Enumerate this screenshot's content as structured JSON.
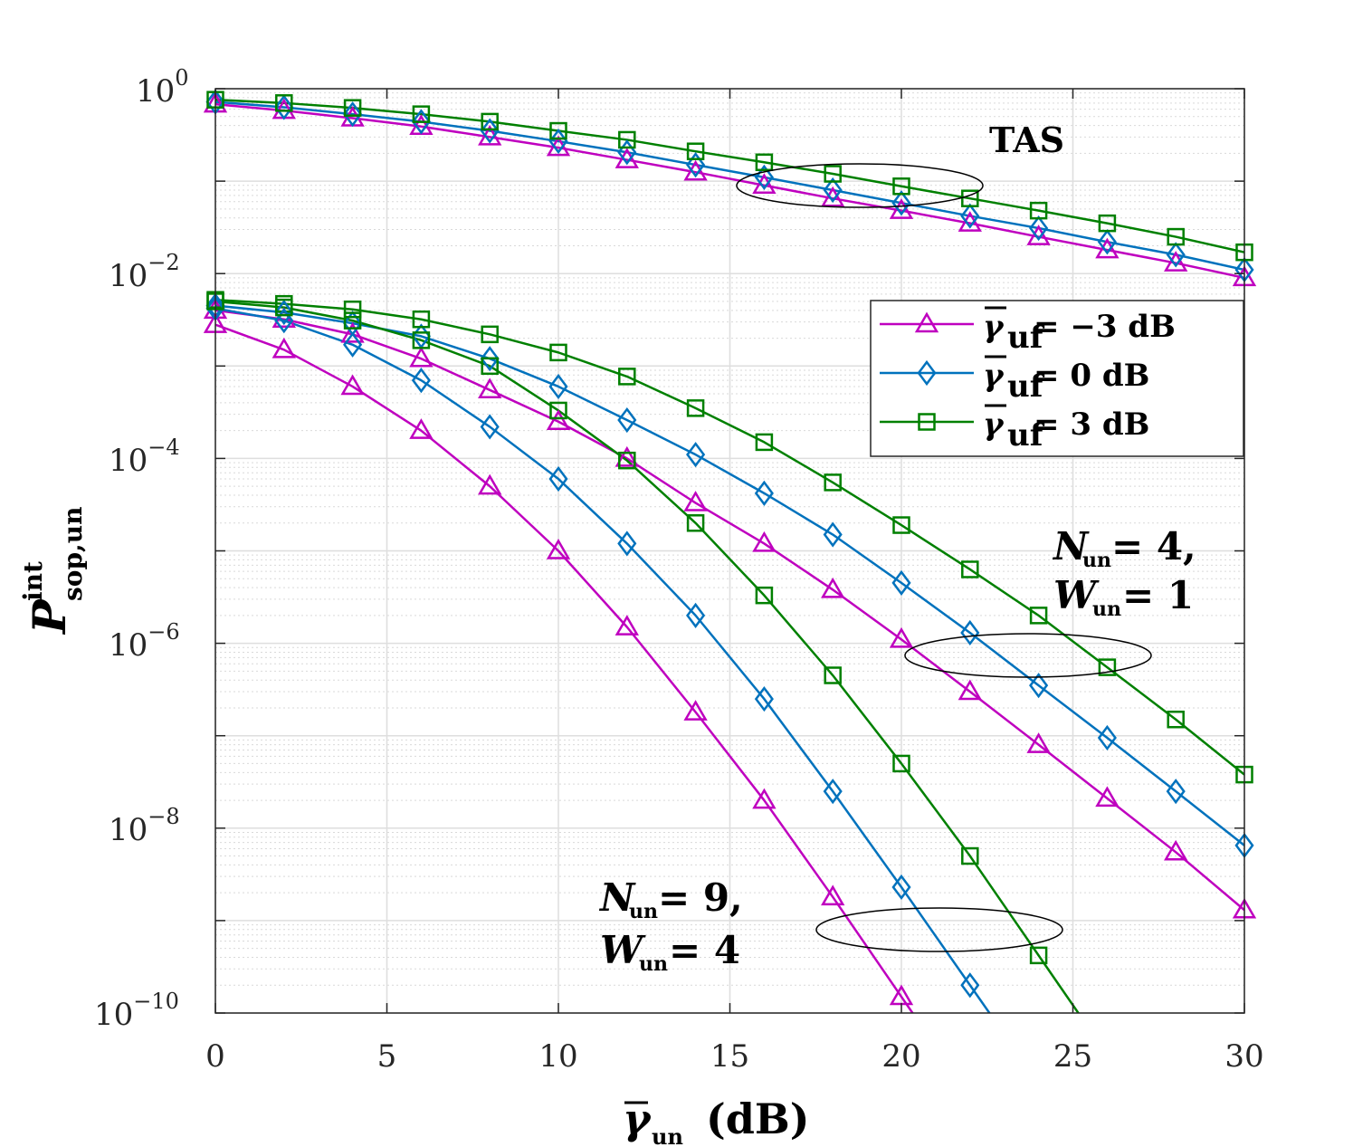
{
  "chart_data": {
    "type": "line",
    "xlabel": "γ̄_un (dB)",
    "xlabel_main": "γ",
    "xlabel_sub": "un",
    "xlabel_unit": "(dB)",
    "ylabel": "P^int_sop,un",
    "ylabel_main": "P",
    "ylabel_sup": "int",
    "ylabel_sub": "sop,un",
    "xlim": [
      0,
      30
    ],
    "ylim_log10": [
      -10,
      0
    ],
    "y_scale": "log",
    "x_ticks": [
      0,
      5,
      10,
      15,
      20,
      25,
      30
    ],
    "x_tick_labels": [
      "0",
      "5",
      "10",
      "15",
      "20",
      "25",
      "30"
    ],
    "y_ticks_exp": [
      0,
      -2,
      -4,
      -6,
      -8,
      -10
    ],
    "y_tick_labels": [
      "10^0",
      "10^-2",
      "10^-4",
      "10^-6",
      "10^-8",
      "10^-10"
    ],
    "y_tick_base": "10",
    "y_tick_exps": [
      "0",
      "−2",
      "−4",
      "−6",
      "−8",
      "−10"
    ],
    "grid": true,
    "legend_position": "upper-right",
    "colors": {
      "magenta": "#BF00BF",
      "blue": "#0072BD",
      "green": "#008000"
    },
    "legend": [
      {
        "name": "γ̄_uf = −3 dB",
        "main": "γ",
        "sub": "uf",
        "value": "= −3 dB",
        "color": "#BF00BF",
        "marker": "triangle"
      },
      {
        "name": "γ̄_uf = 0 dB",
        "main": "γ",
        "sub": "uf",
        "value": "= 0 dB",
        "color": "#0072BD",
        "marker": "diamond"
      },
      {
        "name": "γ̄_uf = 3 dB",
        "main": "γ",
        "sub": "uf",
        "value": "= 3 dB",
        "color": "#008000",
        "marker": "square"
      }
    ],
    "annotations": {
      "tas": "TAS",
      "group1_line1": "N_un = 4,",
      "group1_line2": "W_un = 1",
      "group2_line1": "N_un = 9,",
      "group2_line2": "W_un = 4",
      "n_main": "N",
      "w_main": "W",
      "un_sub": "un",
      "g1_n": "= 4,",
      "g1_w": "= 1",
      "g2_n": "= 9,",
      "g2_w": "= 4"
    },
    "x": [
      0,
      2,
      4,
      6,
      8,
      10,
      12,
      14,
      16,
      18,
      20,
      22,
      24,
      26,
      28,
      30
    ],
    "series": [
      {
        "name": "TAS, γ̄_uf = −3 dB",
        "group": "TAS",
        "color": "#BF00BF",
        "marker": "triangle",
        "values": [
          0.68,
          0.58,
          0.48,
          0.39,
          0.3,
          0.23,
          0.17,
          0.125,
          0.09,
          0.065,
          0.048,
          0.035,
          0.025,
          0.018,
          0.013,
          0.009
        ]
      },
      {
        "name": "TAS, γ̄_uf = 0 dB",
        "group": "TAS",
        "color": "#0072BD",
        "marker": "diamond",
        "values": [
          0.72,
          0.63,
          0.53,
          0.44,
          0.35,
          0.27,
          0.205,
          0.15,
          0.11,
          0.08,
          0.058,
          0.042,
          0.031,
          0.022,
          0.016,
          0.011
        ]
      },
      {
        "name": "TAS, γ̄_uf = 3 dB",
        "group": "TAS",
        "color": "#008000",
        "marker": "square",
        "values": [
          0.76,
          0.7,
          0.62,
          0.53,
          0.44,
          0.35,
          0.28,
          0.21,
          0.16,
          0.12,
          0.088,
          0.065,
          0.048,
          0.035,
          0.025,
          0.017
        ]
      },
      {
        "name": "N_un = 4, W_un = 1, γ̄_uf = −3 dB",
        "group": "N4W1",
        "color": "#BF00BF",
        "marker": "triangle",
        "values": [
          0.004,
          0.0032,
          0.0022,
          0.0012,
          0.00055,
          0.00025,
          0.0001,
          3.3e-05,
          1.2e-05,
          3.8e-06,
          1.1e-06,
          3e-07,
          8e-08,
          2.1e-08,
          5.5e-09,
          1.3e-09
        ]
      },
      {
        "name": "N_un = 4, W_un = 1, γ̄_uf = 0 dB",
        "group": "N4W1",
        "color": "#0072BD",
        "marker": "diamond",
        "values": [
          0.0045,
          0.0038,
          0.0029,
          0.0021,
          0.0012,
          0.0006,
          0.00026,
          0.00011,
          4.2e-05,
          1.5e-05,
          4.5e-06,
          1.3e-06,
          3.5e-07,
          9.5e-08,
          2.5e-08,
          6.5e-09
        ]
      },
      {
        "name": "N_un = 4, W_un = 1, γ̄_uf = 3 dB",
        "group": "N4W1",
        "color": "#008000",
        "marker": "square",
        "values": [
          0.0052,
          0.0047,
          0.0041,
          0.0032,
          0.0022,
          0.0014,
          0.00077,
          0.00035,
          0.00015,
          5.5e-05,
          1.9e-05,
          6.3e-06,
          2e-06,
          5.5e-07,
          1.5e-07,
          3.8e-08
        ]
      },
      {
        "name": "N_un = 9, W_un = 4, γ̄_uf = −3 dB",
        "group": "N9W4",
        "color": "#BF00BF",
        "marker": "triangle",
        "values": [
          0.0028,
          0.0015,
          0.0006,
          0.0002,
          5e-05,
          1e-05,
          1.5e-06,
          1.8e-07,
          2e-08,
          1.8e-09,
          1.5e-10,
          null,
          null,
          null,
          null,
          null
        ]
      },
      {
        "name": "N_un = 9, W_un = 4, γ̄_uf = 0 dB",
        "group": "N9W4",
        "color": "#0072BD",
        "marker": "diamond",
        "values": [
          0.0042,
          0.0031,
          0.0017,
          0.0007,
          0.00022,
          6e-05,
          1.2e-05,
          2e-06,
          2.5e-07,
          2.5e-08,
          2.3e-09,
          2e-10,
          null,
          null,
          null,
          null
        ]
      },
      {
        "name": "N_un = 9, W_un = 4, γ̄_uf = 3 dB",
        "group": "N9W4",
        "color": "#008000",
        "marker": "square",
        "values": [
          0.005,
          0.0043,
          0.0031,
          0.0019,
          0.001,
          0.00033,
          9.5e-05,
          2e-05,
          3.3e-06,
          4.5e-07,
          5e-08,
          5e-09,
          4.2e-10,
          null,
          null,
          null
        ]
      }
    ]
  }
}
